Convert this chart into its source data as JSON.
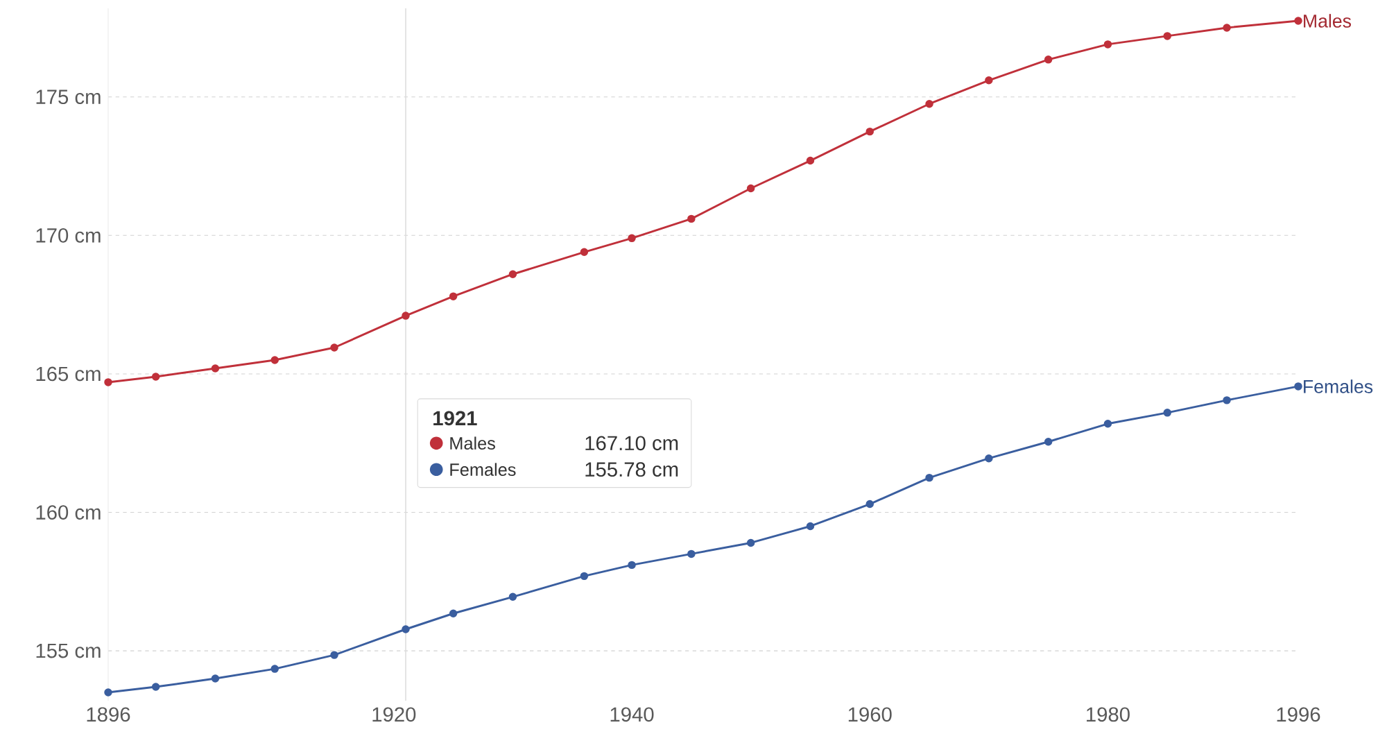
{
  "chart_data": {
    "type": "line",
    "x": [
      1896,
      1900,
      1905,
      1910,
      1915,
      1921,
      1925,
      1930,
      1936,
      1940,
      1945,
      1950,
      1955,
      1960,
      1965,
      1970,
      1975,
      1980,
      1985,
      1990,
      1996
    ],
    "series": [
      {
        "name": "Males",
        "color": "#c0303a",
        "values": [
          164.7,
          164.9,
          165.2,
          165.5,
          165.95,
          167.1,
          167.8,
          168.6,
          169.4,
          169.9,
          170.6,
          171.7,
          172.7,
          173.75,
          174.75,
          175.6,
          176.35,
          176.9,
          177.2,
          177.5,
          177.75
        ]
      },
      {
        "name": "Females",
        "color": "#3a5e9f",
        "values": [
          153.5,
          153.7,
          154.0,
          154.35,
          154.85,
          155.78,
          156.35,
          156.95,
          157.7,
          158.1,
          158.5,
          158.9,
          159.5,
          160.3,
          161.25,
          161.95,
          162.55,
          163.2,
          163.6,
          164.05,
          164.55
        ]
      }
    ],
    "xlim": [
      1896,
      1996
    ],
    "xticks": [
      1896,
      1920,
      1940,
      1960,
      1980,
      1996
    ],
    "ylim": [
      153.2,
      178.2
    ],
    "yticks": [
      {
        "value": 155,
        "label": "155 cm"
      },
      {
        "value": 160,
        "label": "160 cm"
      },
      {
        "value": 165,
        "label": "165 cm"
      },
      {
        "value": 170,
        "label": "170 cm"
      },
      {
        "value": 175,
        "label": "175 cm"
      }
    ],
    "grid": "y",
    "legend": false,
    "marker": "circle",
    "line_style": "solid",
    "ref_lines": [
      {
        "axis": "x",
        "value": 1921,
        "color": "#dddddd"
      }
    ],
    "annotations": [
      "1921",
      "Males",
      "167.10 cm",
      "Females",
      "155.78 cm"
    ]
  }
}
